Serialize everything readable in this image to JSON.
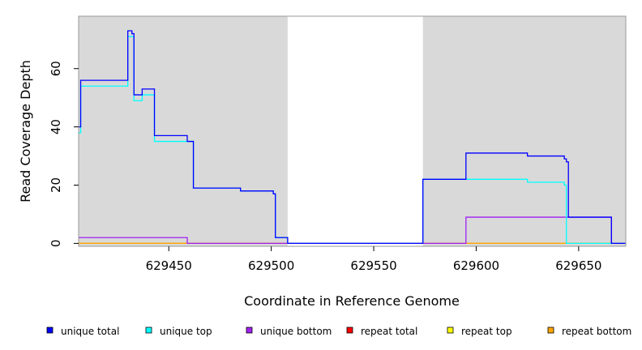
{
  "chart_data": {
    "type": "line",
    "xlabel": "Coordinate in Reference Genome",
    "ylabel": "Read Coverage Depth",
    "xlim": [
      629406,
      629673
    ],
    "ylim": [
      -1,
      78
    ],
    "x_ticks": [
      629450,
      629500,
      629550,
      629600,
      629650
    ],
    "y_ticks": [
      0,
      20,
      40,
      60
    ],
    "shaded_regions": [
      {
        "x_start": 629406,
        "x_end": 629508,
        "color": "#d9d9d9"
      },
      {
        "x_start": 629574,
        "x_end": 629673,
        "color": "#d9d9d9"
      }
    ],
    "series": [
      {
        "name": "repeat total",
        "color": "#ff0000",
        "x": [
          629406,
          629673
        ],
        "y": [
          0,
          0
        ]
      },
      {
        "name": "repeat top",
        "color": "#ffff00",
        "x": [
          629406,
          629673
        ],
        "y": [
          0,
          0
        ]
      },
      {
        "name": "repeat bottom",
        "color": "#ffa500",
        "x": [
          629406,
          629673
        ],
        "y": [
          0,
          0
        ]
      },
      {
        "name": "unique bottom",
        "color": "#a020f0",
        "x": [
          629406,
          629459,
          629459,
          629595,
          629595,
          629666,
          629666,
          629673
        ],
        "y": [
          2,
          2,
          0,
          0,
          9,
          9,
          0,
          0
        ]
      },
      {
        "name": "unique top",
        "color": "#00ffff",
        "x": [
          629406,
          629407,
          629407,
          629430,
          629430,
          629433,
          629433,
          629437,
          629437,
          629443,
          629443,
          629459,
          629459,
          629462,
          629462,
          629485,
          629485,
          629501,
          629501,
          629502,
          629502,
          629508,
          629508,
          629574,
          629574,
          629625,
          629625,
          629643,
          629643,
          629644,
          629644,
          629673
        ],
        "y": [
          38,
          38,
          54,
          54,
          71,
          71,
          49,
          49,
          51,
          51,
          35,
          35,
          35,
          35,
          19,
          19,
          18,
          18,
          17,
          17,
          2,
          2,
          0,
          0,
          22,
          22,
          21,
          21,
          20,
          20,
          0,
          0
        ]
      },
      {
        "name": "unique total",
        "color": "#0000ff",
        "x": [
          629406,
          629407,
          629407,
          629430,
          629430,
          629432,
          629432,
          629433,
          629433,
          629437,
          629437,
          629443,
          629443,
          629459,
          629459,
          629462,
          629462,
          629485,
          629485,
          629501,
          629501,
          629502,
          629502,
          629508,
          629508,
          629574,
          629574,
          629595,
          629595,
          629625,
          629625,
          629643,
          629643,
          629644,
          629644,
          629645,
          629645,
          629666,
          629666,
          629673
        ],
        "y": [
          40,
          40,
          56,
          56,
          73,
          73,
          72,
          72,
          51,
          51,
          53,
          53,
          37,
          37,
          35,
          35,
          19,
          19,
          18,
          18,
          17,
          17,
          2,
          2,
          0,
          0,
          22,
          22,
          31,
          31,
          30,
          30,
          29,
          29,
          28,
          28,
          9,
          9,
          0,
          0
        ]
      }
    ],
    "legend": {
      "placement": "bottom",
      "entries": [
        {
          "label": "unique total",
          "color": "#0000ff"
        },
        {
          "label": "unique top",
          "color": "#00ffff"
        },
        {
          "label": "unique bottom",
          "color": "#a020f0"
        },
        {
          "label": "repeat total",
          "color": "#ff0000"
        },
        {
          "label": "repeat top",
          "color": "#ffff00"
        },
        {
          "label": "repeat bottom",
          "color": "#ffa500"
        }
      ]
    }
  }
}
